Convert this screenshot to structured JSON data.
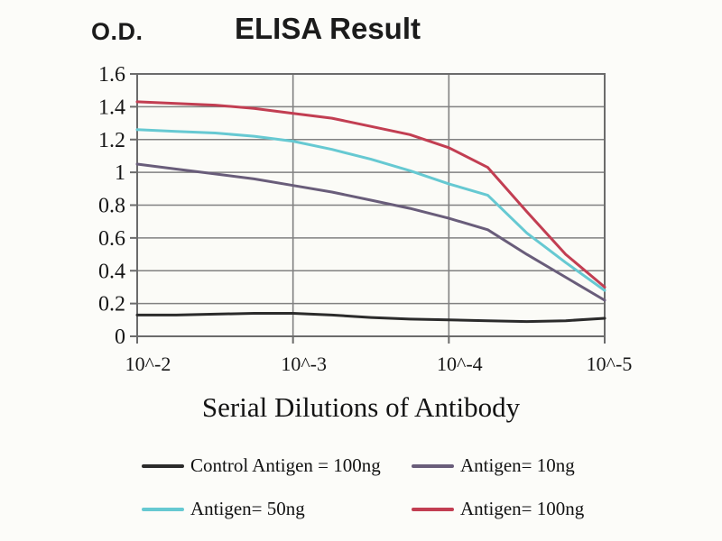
{
  "figure": {
    "title": "ELISA Result",
    "y_axis_label": "O.D.",
    "x_axis_label": "Serial Dilutions of Antibody"
  },
  "chart_data": {
    "type": "line",
    "title": "ELISA Result",
    "xlabel": "Serial Dilutions of Antibody",
    "ylabel": "O.D.",
    "x_tick_labels": [
      "10^-2",
      "10^-3",
      "10^-4",
      "10^-5"
    ],
    "x_tick_decades": [
      0,
      1,
      2,
      3
    ],
    "y_ticks": [
      0,
      0.2,
      0.4,
      0.6,
      0.8,
      1.0,
      1.2,
      1.4,
      1.6
    ],
    "y_tick_labels": [
      "0",
      "0.2",
      "0.4",
      "0.6",
      "0.8",
      "1",
      "1.2",
      "1.4",
      "1.6"
    ],
    "ylim": [
      0,
      1.6
    ],
    "grid": true,
    "legend_position": "bottom",
    "x_decades": [
      0,
      0.25,
      0.5,
      0.75,
      1,
      1.25,
      1.5,
      1.75,
      2,
      2.25,
      2.5,
      2.75,
      3
    ],
    "series": [
      {
        "id": "control-antigen-100ng",
        "name": "Control Antigen = 100ng",
        "color": "#2b2b2b",
        "values": [
          0.13,
          0.13,
          0.135,
          0.14,
          0.14,
          0.13,
          0.115,
          0.105,
          0.1,
          0.095,
          0.09,
          0.095,
          0.11
        ]
      },
      {
        "id": "antigen-10ng",
        "name": "Antigen= 10ng",
        "color": "#695d7a",
        "values": [
          1.05,
          1.02,
          0.99,
          0.96,
          0.92,
          0.88,
          0.83,
          0.78,
          0.72,
          0.65,
          0.5,
          0.36,
          0.22
        ]
      },
      {
        "id": "antigen-50ng",
        "name": "Antigen= 50ng",
        "color": "#66c9d2",
        "values": [
          1.26,
          1.25,
          1.24,
          1.22,
          1.19,
          1.14,
          1.08,
          1.01,
          0.93,
          0.86,
          0.63,
          0.45,
          0.28
        ]
      },
      {
        "id": "antigen-100ng",
        "name": "Antigen= 100ng",
        "color": "#c23e52",
        "values": [
          1.43,
          1.42,
          1.41,
          1.39,
          1.36,
          1.33,
          1.28,
          1.23,
          1.15,
          1.03,
          0.76,
          0.5,
          0.3
        ]
      }
    ],
    "style": {
      "grid_color": "#818181",
      "border_color": "#6b6b6b",
      "tick_text_color": "#161616"
    }
  }
}
